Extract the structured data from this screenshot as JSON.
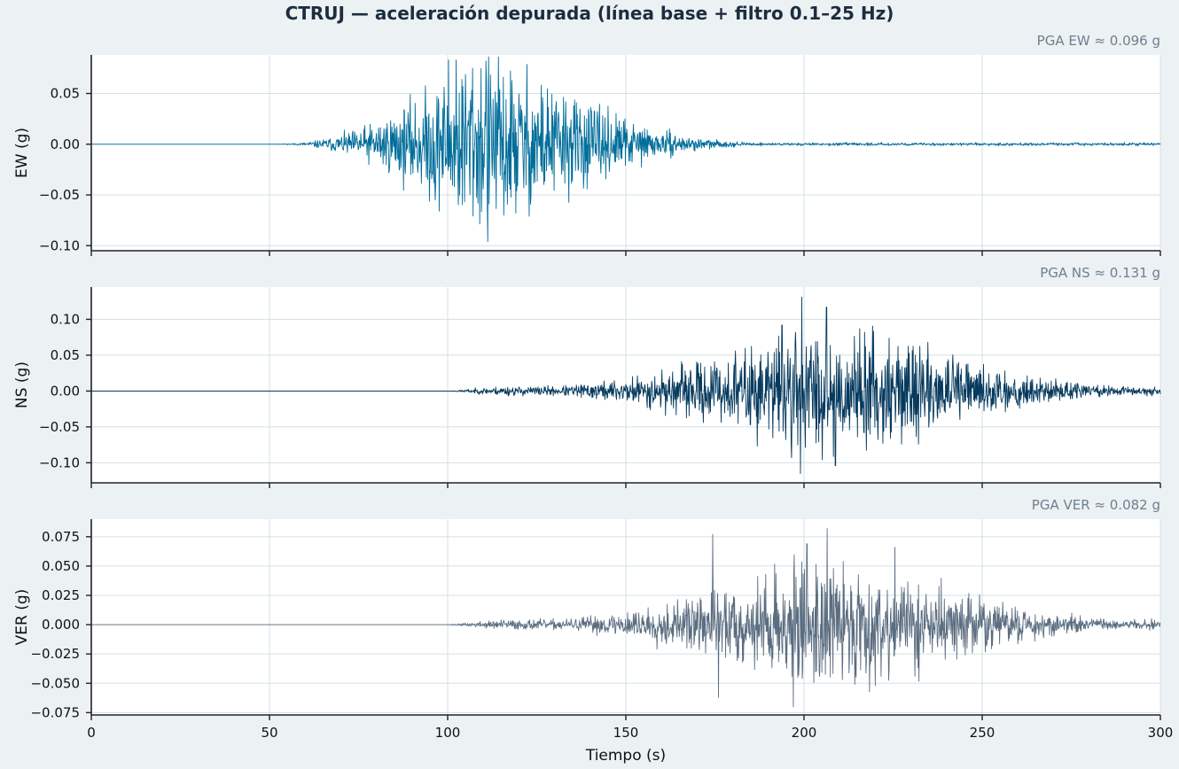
{
  "title": "CTRUJ — aceleración depurada (línea base + filtro 0.1–25 Hz)",
  "chart_data": [
    {
      "type": "line",
      "ylabel": "EW (g)",
      "annotation": "PGA EW ≈ 0.096 g",
      "pga": 0.096,
      "color": "#006d9a",
      "xlim": [
        0,
        300
      ],
      "ylim": [
        -0.105,
        0.088
      ],
      "yticks": [
        -0.1,
        -0.05,
        0.0,
        0.05
      ],
      "ytick_labels": [
        "−0.10",
        "−0.05",
        "0.00",
        "0.05"
      ],
      "envelope": {
        "onset_s": 50,
        "peak_s": 105,
        "peak_amp": 0.09,
        "rise_s": 55,
        "decay_s": 40,
        "tail_amp": 0.0015
      },
      "peaks": [
        {
          "t": 100.2,
          "a": 0.083
        },
        {
          "t": 102.4,
          "a": 0.083
        },
        {
          "t": 110.8,
          "a": 0.082
        },
        {
          "t": 111.3,
          "a": -0.096
        },
        {
          "t": 107.0,
          "a": 0.075
        },
        {
          "t": 115.8,
          "a": -0.07
        },
        {
          "t": 96.5,
          "a": -0.055
        }
      ],
      "grid": true,
      "seed": 11
    },
    {
      "type": "line",
      "ylabel": "NS (g)",
      "annotation": "PGA NS ≈ 0.131 g",
      "pga": 0.131,
      "color": "#063a5e",
      "xlim": [
        0,
        300
      ],
      "ylim": [
        -0.128,
        0.145
      ],
      "yticks": [
        -0.1,
        -0.05,
        0.0,
        0.05,
        0.1
      ],
      "ytick_labels": [
        "−0.10",
        "−0.05",
        "0.00",
        "0.05",
        "0.10"
      ],
      "envelope": {
        "onset_s": 100,
        "peak_s": 200,
        "peak_amp": 0.088,
        "rise_s": 100,
        "decay_s": 55,
        "tail_amp": 0.007
      },
      "peaks": [
        {
          "t": 199.4,
          "a": 0.131
        },
        {
          "t": 199.0,
          "a": -0.115
        },
        {
          "t": 206.3,
          "a": 0.117
        },
        {
          "t": 208.8,
          "a": -0.104
        },
        {
          "t": 196.5,
          "a": -0.093
        },
        {
          "t": 217.0,
          "a": 0.082
        },
        {
          "t": 193.8,
          "a": 0.092
        }
      ],
      "grid": true,
      "seed": 23
    },
    {
      "type": "line",
      "ylabel": "VER (g)",
      "annotation": "PGA VER ≈ 0.082 g",
      "pga": 0.082,
      "color": "#5b6d80",
      "xlim": [
        0,
        300
      ],
      "ylim": [
        -0.077,
        0.09
      ],
      "yticks": [
        -0.075,
        -0.05,
        -0.025,
        0.0,
        0.025,
        0.05,
        0.075
      ],
      "ytick_labels": [
        "−0.075",
        "−0.050",
        "−0.025",
        "0.000",
        "0.025",
        "0.050",
        "0.075"
      ],
      "envelope": {
        "onset_s": 100,
        "peak_s": 200,
        "peak_amp": 0.055,
        "rise_s": 100,
        "decay_s": 55,
        "tail_amp": 0.0045
      },
      "peaks": [
        {
          "t": 206.5,
          "a": 0.082
        },
        {
          "t": 174.4,
          "a": 0.077
        },
        {
          "t": 197.0,
          "a": -0.07
        },
        {
          "t": 200.8,
          "a": 0.069
        },
        {
          "t": 225.5,
          "a": 0.066
        },
        {
          "t": 176.0,
          "a": -0.062
        },
        {
          "t": 220.0,
          "a": -0.052
        }
      ],
      "grid": true,
      "seed": 37
    }
  ],
  "xaxis": {
    "label": "Tiempo (s)",
    "ticks": [
      0,
      50,
      100,
      150,
      200,
      250,
      300
    ],
    "tick_labels": [
      "0",
      "50",
      "100",
      "150",
      "200",
      "250",
      "300"
    ]
  }
}
